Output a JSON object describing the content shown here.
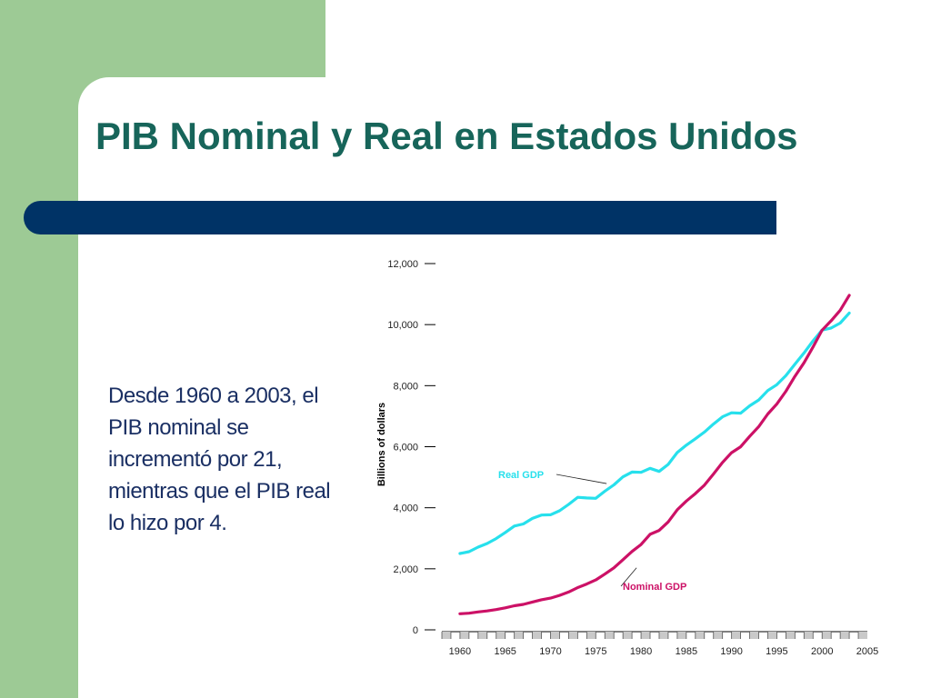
{
  "slide": {
    "title": "PIB Nominal y Real en Estados Unidos",
    "body": "Desde 1960 a 2003, el PIB nominal se incrementó por 21, mientras que el PIB real lo hizo por 4.",
    "colors": {
      "green": "#9dca95",
      "title": "#17655a",
      "bar": "#003366",
      "text": "#1a2f63"
    }
  },
  "chart_data": {
    "type": "line",
    "ylabel": "Billions of dollars",
    "xlim": [
      1958,
      2005
    ],
    "ylim": [
      0,
      12000
    ],
    "x_ticks": [
      1960,
      1965,
      1970,
      1975,
      1980,
      1985,
      1990,
      1995,
      2000,
      2005
    ],
    "y_ticks": [
      0,
      2000,
      4000,
      6000,
      8000,
      10000,
      12000
    ],
    "y_tick_labels": [
      "0",
      "2,000",
      "4,000",
      "6,000",
      "8,000",
      "10,000",
      "12,000"
    ],
    "series": [
      {
        "name": "Real GDP",
        "color": "#27e0ec",
        "x": [
          1960,
          1961,
          1962,
          1963,
          1964,
          1965,
          1966,
          1967,
          1968,
          1969,
          1970,
          1971,
          1972,
          1973,
          1974,
          1975,
          1976,
          1977,
          1978,
          1979,
          1980,
          1981,
          1982,
          1983,
          1984,
          1985,
          1986,
          1987,
          1988,
          1989,
          1990,
          1991,
          1992,
          1993,
          1994,
          1995,
          1996,
          1997,
          1998,
          1999,
          2000,
          2001,
          2002,
          2003
        ],
        "values": [
          2500,
          2560,
          2710,
          2830,
          2990,
          3190,
          3400,
          3470,
          3650,
          3760,
          3770,
          3900,
          4110,
          4340,
          4320,
          4310,
          4540,
          4750,
          5010,
          5170,
          5160,
          5290,
          5190,
          5420,
          5810,
          6050,
          6260,
          6480,
          6740,
          6980,
          7110,
          7100,
          7340,
          7530,
          7840,
          8030,
          8330,
          8700,
          9070,
          9470,
          9820,
          9890,
          10050,
          10380
        ]
      },
      {
        "name": "Nominal GDP",
        "color": "#cc1166",
        "x": [
          1960,
          1961,
          1962,
          1963,
          1964,
          1965,
          1966,
          1967,
          1968,
          1969,
          1970,
          1971,
          1972,
          1973,
          1974,
          1975,
          1976,
          1977,
          1978,
          1979,
          1980,
          1981,
          1982,
          1983,
          1984,
          1985,
          1986,
          1987,
          1988,
          1989,
          1990,
          1991,
          1992,
          1993,
          1994,
          1995,
          1996,
          1997,
          1998,
          1999,
          2000,
          2001,
          2002,
          2003
        ],
        "values": [
          527,
          545,
          586,
          618,
          664,
          720,
          790,
          834,
          911,
          985,
          1040,
          1128,
          1240,
          1385,
          1501,
          1635,
          1824,
          2031,
          2295,
          2566,
          2796,
          3131,
          3259,
          3535,
          3933,
          4220,
          4463,
          4740,
          5104,
          5484,
          5803,
          5996,
          6338,
          6657,
          7072,
          7398,
          7817,
          8304,
          8747,
          9268,
          9817,
          10128,
          10470,
          10961
        ]
      }
    ],
    "annotations": [
      {
        "text": "Real GDP",
        "series": "Real GDP",
        "x": 1978,
        "y": 5150
      },
      {
        "text": "Nominal GDP",
        "series": "Nominal GDP",
        "x": 1978.5,
        "y": 2150
      }
    ]
  }
}
